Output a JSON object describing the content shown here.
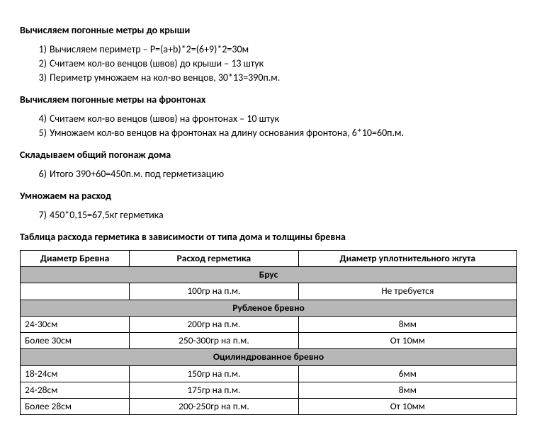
{
  "section1": {
    "heading": "Вычисляем погонные метры до крыши",
    "steps": [
      {
        "n": "1)",
        "text": "Вычисляем периметр – P=(a+b)*2=(6+9)*2=30м"
      },
      {
        "n": "2)",
        "text": "Считаем кол-во венцов (швов) до крыши – 13 штук"
      },
      {
        "n": "3)",
        "text": "Периметр умножаем на кол-во венцов, 30*13=390п.м."
      }
    ]
  },
  "section2": {
    "heading": "Вычисляем погонные метры на фронтонах",
    "steps": [
      {
        "n": "4)",
        "text": "Считаем кол-во венцов (швов) на фронтонах – 10 штук"
      },
      {
        "n": "5)",
        "text": "Умножаем кол-во венцов на фронтонах на длину основания фронтона, 6*10=60п.м."
      }
    ]
  },
  "section3": {
    "heading": "Складываем общий погонаж дома",
    "steps": [
      {
        "n": "6)",
        "text": "Итого 390+60=450п.м. под герметизацию"
      }
    ]
  },
  "section4": {
    "heading": "Умножаем на расход",
    "steps": [
      {
        "n": "7)",
        "text": "450*0,15=67,5кг герметика"
      }
    ]
  },
  "table": {
    "title": "Таблица расхода герметика в зависимости от типа дома и толщины бревна",
    "columns": [
      "Диаметр Бревна",
      "Расход герметика",
      "Диаметр уплотнительного жгута"
    ],
    "col_widths": [
      "22%",
      "34%",
      "44%"
    ],
    "groups": [
      {
        "name": "Брус",
        "rows": [
          {
            "diam": "",
            "cons": "100гр на п.м.",
            "cord": "Не требуется"
          }
        ]
      },
      {
        "name": "Рубленое бревно",
        "rows": [
          {
            "diam": "24-30см",
            "cons": "200гр на п.м.",
            "cord": "8мм"
          },
          {
            "diam": "Более 30см",
            "cons": "250-300гр на п.м.",
            "cord": "От 10мм"
          }
        ]
      },
      {
        "name": "Оцилиндрованное бревно",
        "rows": [
          {
            "diam": "18-24см",
            "cons": "150гр на п.м.",
            "cord": "6мм"
          },
          {
            "diam": "24-28см",
            "cons": "175гр на п.м.",
            "cord": "8мм"
          },
          {
            "diam": "Более 28см",
            "cons": "200-250гр на п.м.",
            "cord": "От 10мм"
          }
        ]
      }
    ]
  }
}
